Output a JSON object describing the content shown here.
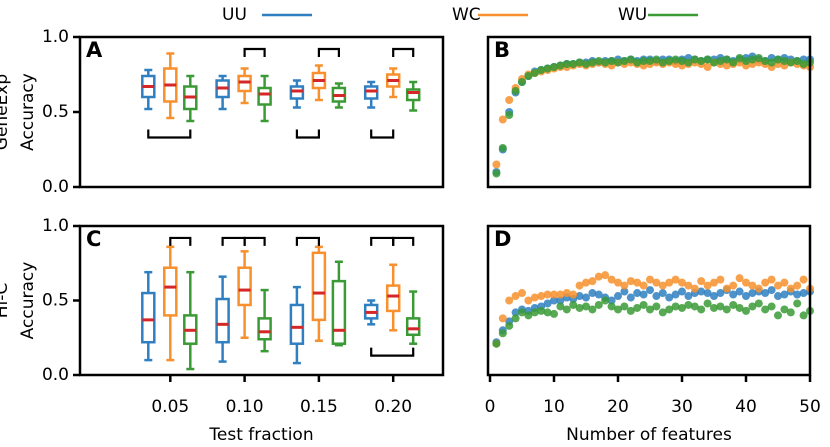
{
  "chart_data": [
    {
      "type": "box",
      "panel": "A",
      "ylabel": [
        "GeneExp",
        "Accuracy"
      ],
      "ylim": [
        0,
        1
      ],
      "yticks": [
        {
          "value": 0,
          "label": "0.0"
        },
        {
          "value": 0.5,
          "label": "0.5"
        },
        {
          "value": 1,
          "label": "1.0"
        }
      ],
      "median_color": "#d62728",
      "series": [
        {
          "name": "UU",
          "color": "#2f7fc1",
          "min": [
            0.52,
            0.52,
            0.53,
            0.53
          ],
          "q1": [
            0.6,
            0.6,
            0.59,
            0.59
          ],
          "median": [
            0.67,
            0.66,
            0.64,
            0.64
          ],
          "q3": [
            0.74,
            0.71,
            0.67,
            0.67
          ],
          "max": [
            0.78,
            0.74,
            0.71,
            0.7
          ]
        },
        {
          "name": "WC",
          "color": "#f7902d",
          "min": [
            0.46,
            0.56,
            0.58,
            0.6
          ],
          "q1": [
            0.57,
            0.64,
            0.66,
            0.67
          ],
          "median": [
            0.68,
            0.7,
            0.71,
            0.71
          ],
          "q3": [
            0.79,
            0.74,
            0.76,
            0.75
          ],
          "max": [
            0.89,
            0.79,
            0.81,
            0.79
          ]
        },
        {
          "name": "WU",
          "color": "#3a9a35",
          "min": [
            0.44,
            0.44,
            0.53,
            0.51
          ],
          "q1": [
            0.52,
            0.55,
            0.57,
            0.58
          ],
          "median": [
            0.6,
            0.62,
            0.61,
            0.63
          ],
          "q3": [
            0.67,
            0.66,
            0.66,
            0.65
          ],
          "max": [
            0.74,
            0.74,
            0.69,
            0.7
          ]
        }
      ]
    },
    {
      "type": "scatter",
      "panel": "B",
      "ylim": [
        0,
        1
      ],
      "xlim": [
        0,
        50
      ],
      "x": [
        1,
        2,
        3,
        4,
        5,
        6,
        7,
        8,
        9,
        10,
        11,
        12,
        13,
        14,
        15,
        16,
        17,
        18,
        19,
        20,
        21,
        22,
        23,
        24,
        25,
        26,
        27,
        28,
        29,
        30,
        31,
        32,
        33,
        34,
        35,
        36,
        37,
        38,
        39,
        40,
        41,
        42,
        43,
        44,
        45,
        46,
        47,
        48,
        49,
        50
      ],
      "series": [
        {
          "color": "#2f7fc1",
          "values": [
            0.1,
            0.25,
            0.5,
            0.63,
            0.7,
            0.74,
            0.77,
            0.78,
            0.79,
            0.8,
            0.81,
            0.82,
            0.82,
            0.83,
            0.83,
            0.84,
            0.83,
            0.84,
            0.84,
            0.85,
            0.84,
            0.85,
            0.84,
            0.85,
            0.85,
            0.84,
            0.85,
            0.85,
            0.84,
            0.85,
            0.86,
            0.85,
            0.84,
            0.85,
            0.85,
            0.86,
            0.85,
            0.84,
            0.85,
            0.86,
            0.87,
            0.85,
            0.84,
            0.86,
            0.85,
            0.86,
            0.85,
            0.84,
            0.85,
            0.85
          ]
        },
        {
          "color": "#f7902d",
          "values": [
            0.15,
            0.45,
            0.58,
            0.66,
            0.72,
            0.75,
            0.76,
            0.77,
            0.78,
            0.79,
            0.8,
            0.8,
            0.81,
            0.82,
            0.81,
            0.82,
            0.83,
            0.82,
            0.81,
            0.83,
            0.82,
            0.83,
            0.82,
            0.81,
            0.82,
            0.83,
            0.82,
            0.83,
            0.82,
            0.81,
            0.82,
            0.83,
            0.82,
            0.8,
            0.83,
            0.82,
            0.81,
            0.82,
            0.83,
            0.81,
            0.82,
            0.83,
            0.82,
            0.8,
            0.82,
            0.81,
            0.83,
            0.82,
            0.81,
            0.8
          ]
        },
        {
          "color": "#3a9a35",
          "values": [
            0.09,
            0.26,
            0.48,
            0.64,
            0.7,
            0.74,
            0.76,
            0.78,
            0.79,
            0.8,
            0.81,
            0.82,
            0.82,
            0.83,
            0.82,
            0.83,
            0.84,
            0.83,
            0.84,
            0.83,
            0.84,
            0.85,
            0.83,
            0.84,
            0.84,
            0.85,
            0.83,
            0.84,
            0.85,
            0.84,
            0.83,
            0.85,
            0.84,
            0.85,
            0.83,
            0.84,
            0.85,
            0.83,
            0.86,
            0.84,
            0.85,
            0.86,
            0.84,
            0.83,
            0.85,
            0.84,
            0.83,
            0.84,
            0.82,
            0.83
          ]
        }
      ]
    },
    {
      "type": "box",
      "panel": "C",
      "ylabel": [
        "Hi-C",
        "Accuracy"
      ],
      "xlabel": "Test fraction",
      "ylim": [
        0,
        1
      ],
      "yticks": [
        {
          "value": 0,
          "label": "0.0"
        },
        {
          "value": 0.5,
          "label": "0.5"
        },
        {
          "value": 1,
          "label": "1.0"
        }
      ],
      "categories": [
        "0.05",
        "0.10",
        "0.15",
        "0.20"
      ],
      "median_color": "#d62728",
      "series": [
        {
          "color": "#2f7fc1",
          "min": [
            0.1,
            0.09,
            0.08,
            0.34
          ],
          "q1": [
            0.22,
            0.22,
            0.21,
            0.38
          ],
          "median": [
            0.37,
            0.34,
            0.32,
            0.42
          ],
          "q3": [
            0.55,
            0.51,
            0.47,
            0.47
          ],
          "max": [
            0.69,
            0.66,
            0.59,
            0.5
          ]
        },
        {
          "color": "#f7902d",
          "min": [
            0.1,
            0.25,
            0.23,
            0.3
          ],
          "q1": [
            0.4,
            0.47,
            0.37,
            0.43
          ],
          "median": [
            0.59,
            0.57,
            0.55,
            0.53
          ],
          "q3": [
            0.72,
            0.72,
            0.82,
            0.6
          ],
          "max": [
            0.86,
            0.83,
            0.86,
            0.74
          ]
        },
        {
          "color": "#3a9a35",
          "min": [
            0.04,
            0.16,
            0.2,
            0.21
          ],
          "q1": [
            0.21,
            0.24,
            0.21,
            0.27
          ],
          "median": [
            0.3,
            0.29,
            0.3,
            0.31
          ],
          "q3": [
            0.4,
            0.38,
            0.63,
            0.38
          ],
          "max": [
            0.69,
            0.57,
            0.76,
            0.56
          ]
        }
      ]
    },
    {
      "type": "scatter",
      "panel": "D",
      "xlabel": "Number of features",
      "ylim": [
        0,
        1
      ],
      "xlim": [
        0,
        50
      ],
      "xticks": [
        0,
        10,
        20,
        30,
        40,
        50
      ],
      "x": [
        1,
        2,
        3,
        4,
        5,
        6,
        7,
        8,
        9,
        10,
        11,
        12,
        13,
        14,
        15,
        16,
        17,
        18,
        19,
        20,
        21,
        22,
        23,
        24,
        25,
        26,
        27,
        28,
        29,
        30,
        31,
        32,
        33,
        34,
        35,
        36,
        37,
        38,
        39,
        40,
        41,
        42,
        43,
        44,
        45,
        46,
        47,
        48,
        49,
        50
      ],
      "series": [
        {
          "color": "#2f7fc1",
          "values": [
            0.22,
            0.3,
            0.36,
            0.42,
            0.44,
            0.43,
            0.45,
            0.46,
            0.48,
            0.5,
            0.5,
            0.52,
            0.51,
            0.53,
            0.52,
            0.55,
            0.54,
            0.52,
            0.5,
            0.53,
            0.56,
            0.52,
            0.55,
            0.54,
            0.57,
            0.53,
            0.55,
            0.52,
            0.54,
            0.56,
            0.53,
            0.55,
            0.56,
            0.55,
            0.53,
            0.55,
            0.57,
            0.54,
            0.56,
            0.53,
            0.55,
            0.56,
            0.55,
            0.57,
            0.53,
            0.54,
            0.56,
            0.54,
            0.55,
            0.56
          ]
        },
        {
          "color": "#f7902d",
          "values": [
            0.21,
            0.38,
            0.5,
            0.53,
            0.55,
            0.5,
            0.52,
            0.53,
            0.54,
            0.54,
            0.54,
            0.55,
            0.54,
            0.6,
            0.62,
            0.63,
            0.66,
            0.67,
            0.64,
            0.62,
            0.6,
            0.63,
            0.62,
            0.6,
            0.64,
            0.62,
            0.6,
            0.62,
            0.64,
            0.62,
            0.6,
            0.58,
            0.63,
            0.6,
            0.62,
            0.64,
            0.58,
            0.6,
            0.65,
            0.62,
            0.6,
            0.58,
            0.62,
            0.64,
            0.6,
            0.62,
            0.58,
            0.6,
            0.64,
            0.58
          ]
        },
        {
          "color": "#3a9a35",
          "values": [
            0.21,
            0.28,
            0.33,
            0.38,
            0.42,
            0.4,
            0.42,
            0.43,
            0.42,
            0.41,
            0.46,
            0.44,
            0.47,
            0.45,
            0.46,
            0.44,
            0.47,
            0.5,
            0.46,
            0.44,
            0.46,
            0.43,
            0.45,
            0.47,
            0.44,
            0.46,
            0.42,
            0.44,
            0.46,
            0.45,
            0.47,
            0.46,
            0.44,
            0.48,
            0.45,
            0.46,
            0.44,
            0.47,
            0.45,
            0.43,
            0.46,
            0.48,
            0.44,
            0.46,
            0.4,
            0.44,
            0.42,
            0.48,
            0.4,
            0.43
          ]
        }
      ]
    }
  ]
}
